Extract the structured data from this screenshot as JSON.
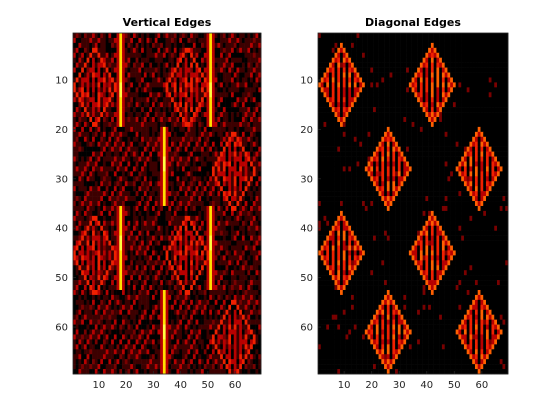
{
  "colormap": [
    "#000000",
    "#3c0000",
    "#7a0000",
    "#b80000",
    "#f02000",
    "#ff6000",
    "#ffa000",
    "#ffe000",
    "#ffff40"
  ],
  "chart_data": [
    {
      "type": "heatmap",
      "title": "Vertical Edges",
      "xlabel": "",
      "ylabel": "",
      "xlim": [
        0.5,
        69.5
      ],
      "ylim": [
        0.5,
        69.5
      ],
      "y_direction": "reverse",
      "x_ticks": [
        10,
        20,
        30,
        40,
        50,
        60
      ],
      "y_ticks": [
        10,
        20,
        30,
        40,
        50,
        60
      ],
      "x_tick_labels": [
        "10",
        "20",
        "30",
        "40",
        "50",
        "60"
      ],
      "y_tick_labels": [
        "10",
        "20",
        "30",
        "40",
        "50",
        "60"
      ],
      "grid": false,
      "colormap": "hot",
      "image_size": [
        69,
        69
      ],
      "structure": {
        "diamond_half_size": 8,
        "diamond_centers": [
          [
            8.5,
            11.5
          ],
          [
            42.5,
            11.5
          ],
          [
            59.5,
            28.5
          ],
          [
            8.5,
            45.5
          ],
          [
            42.5,
            45.5
          ],
          [
            59.5,
            62.5
          ]
        ],
        "vertical_bars": [
          {
            "x": 18,
            "y_range": [
              1,
              19
            ],
            "level": 0.85
          },
          {
            "x": 51,
            "y_range": [
              1,
              19
            ],
            "level": 0.85
          },
          {
            "x": 34,
            "y_range": [
              20,
              35
            ],
            "level": 0.9
          },
          {
            "x": 18,
            "y_range": [
              36,
              52
            ],
            "level": 0.85
          },
          {
            "x": 51,
            "y_range": [
              36,
              52
            ],
            "level": 0.85
          },
          {
            "x": 34,
            "y_range": [
              53,
              69
            ],
            "level": 0.9
          }
        ],
        "bright_spots": [
          [
            18,
            12
          ],
          [
            51,
            12
          ],
          [
            34,
            27
          ],
          [
            18,
            43
          ],
          [
            51,
            43
          ],
          [
            34,
            61
          ]
        ]
      }
    },
    {
      "type": "heatmap",
      "title": "Diagonal Edges",
      "xlabel": "",
      "ylabel": "",
      "xlim": [
        0.5,
        69.5
      ],
      "ylim": [
        0.5,
        69.5
      ],
      "y_direction": "reverse",
      "x_ticks": [
        10,
        20,
        30,
        40,
        50,
        60
      ],
      "y_ticks": [
        10,
        20,
        30,
        40,
        50,
        60
      ],
      "x_tick_labels": [
        "10",
        "20",
        "30",
        "40",
        "50",
        "60"
      ],
      "y_tick_labels": [
        "10",
        "20",
        "30",
        "40",
        "50",
        "60"
      ],
      "grid": false,
      "colormap": "hot",
      "image_size": [
        69,
        69
      ],
      "structure": {
        "diamond_half_size": 8,
        "diamond_centers": [
          [
            9,
            11
          ],
          [
            42,
            11
          ],
          [
            26,
            28
          ],
          [
            59,
            28
          ],
          [
            9,
            45
          ],
          [
            42,
            45
          ],
          [
            26,
            61
          ],
          [
            59,
            61
          ]
        ]
      }
    }
  ]
}
